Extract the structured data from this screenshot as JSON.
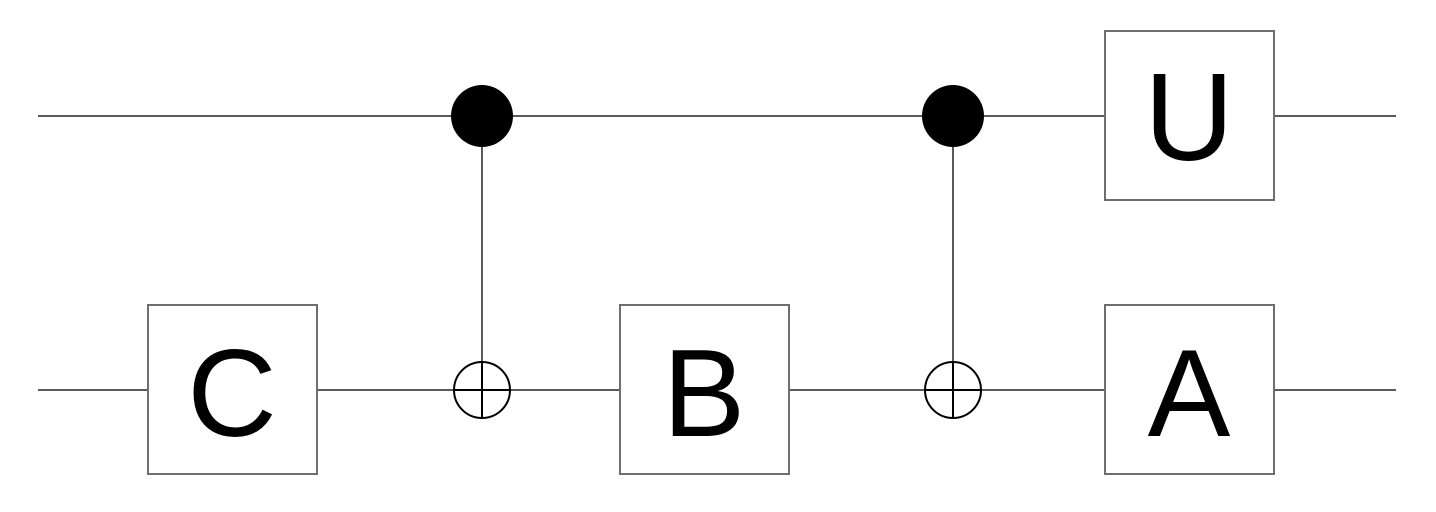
{
  "circuit": {
    "gates": {
      "c": {
        "label": "C"
      },
      "b": {
        "label": "B"
      },
      "u": {
        "label": "U"
      },
      "a": {
        "label": "A"
      }
    }
  },
  "colors": {
    "wire": "#5a5a5a",
    "gate_border": "#6e6e6e",
    "control": "#000000",
    "background": "#ffffff"
  }
}
